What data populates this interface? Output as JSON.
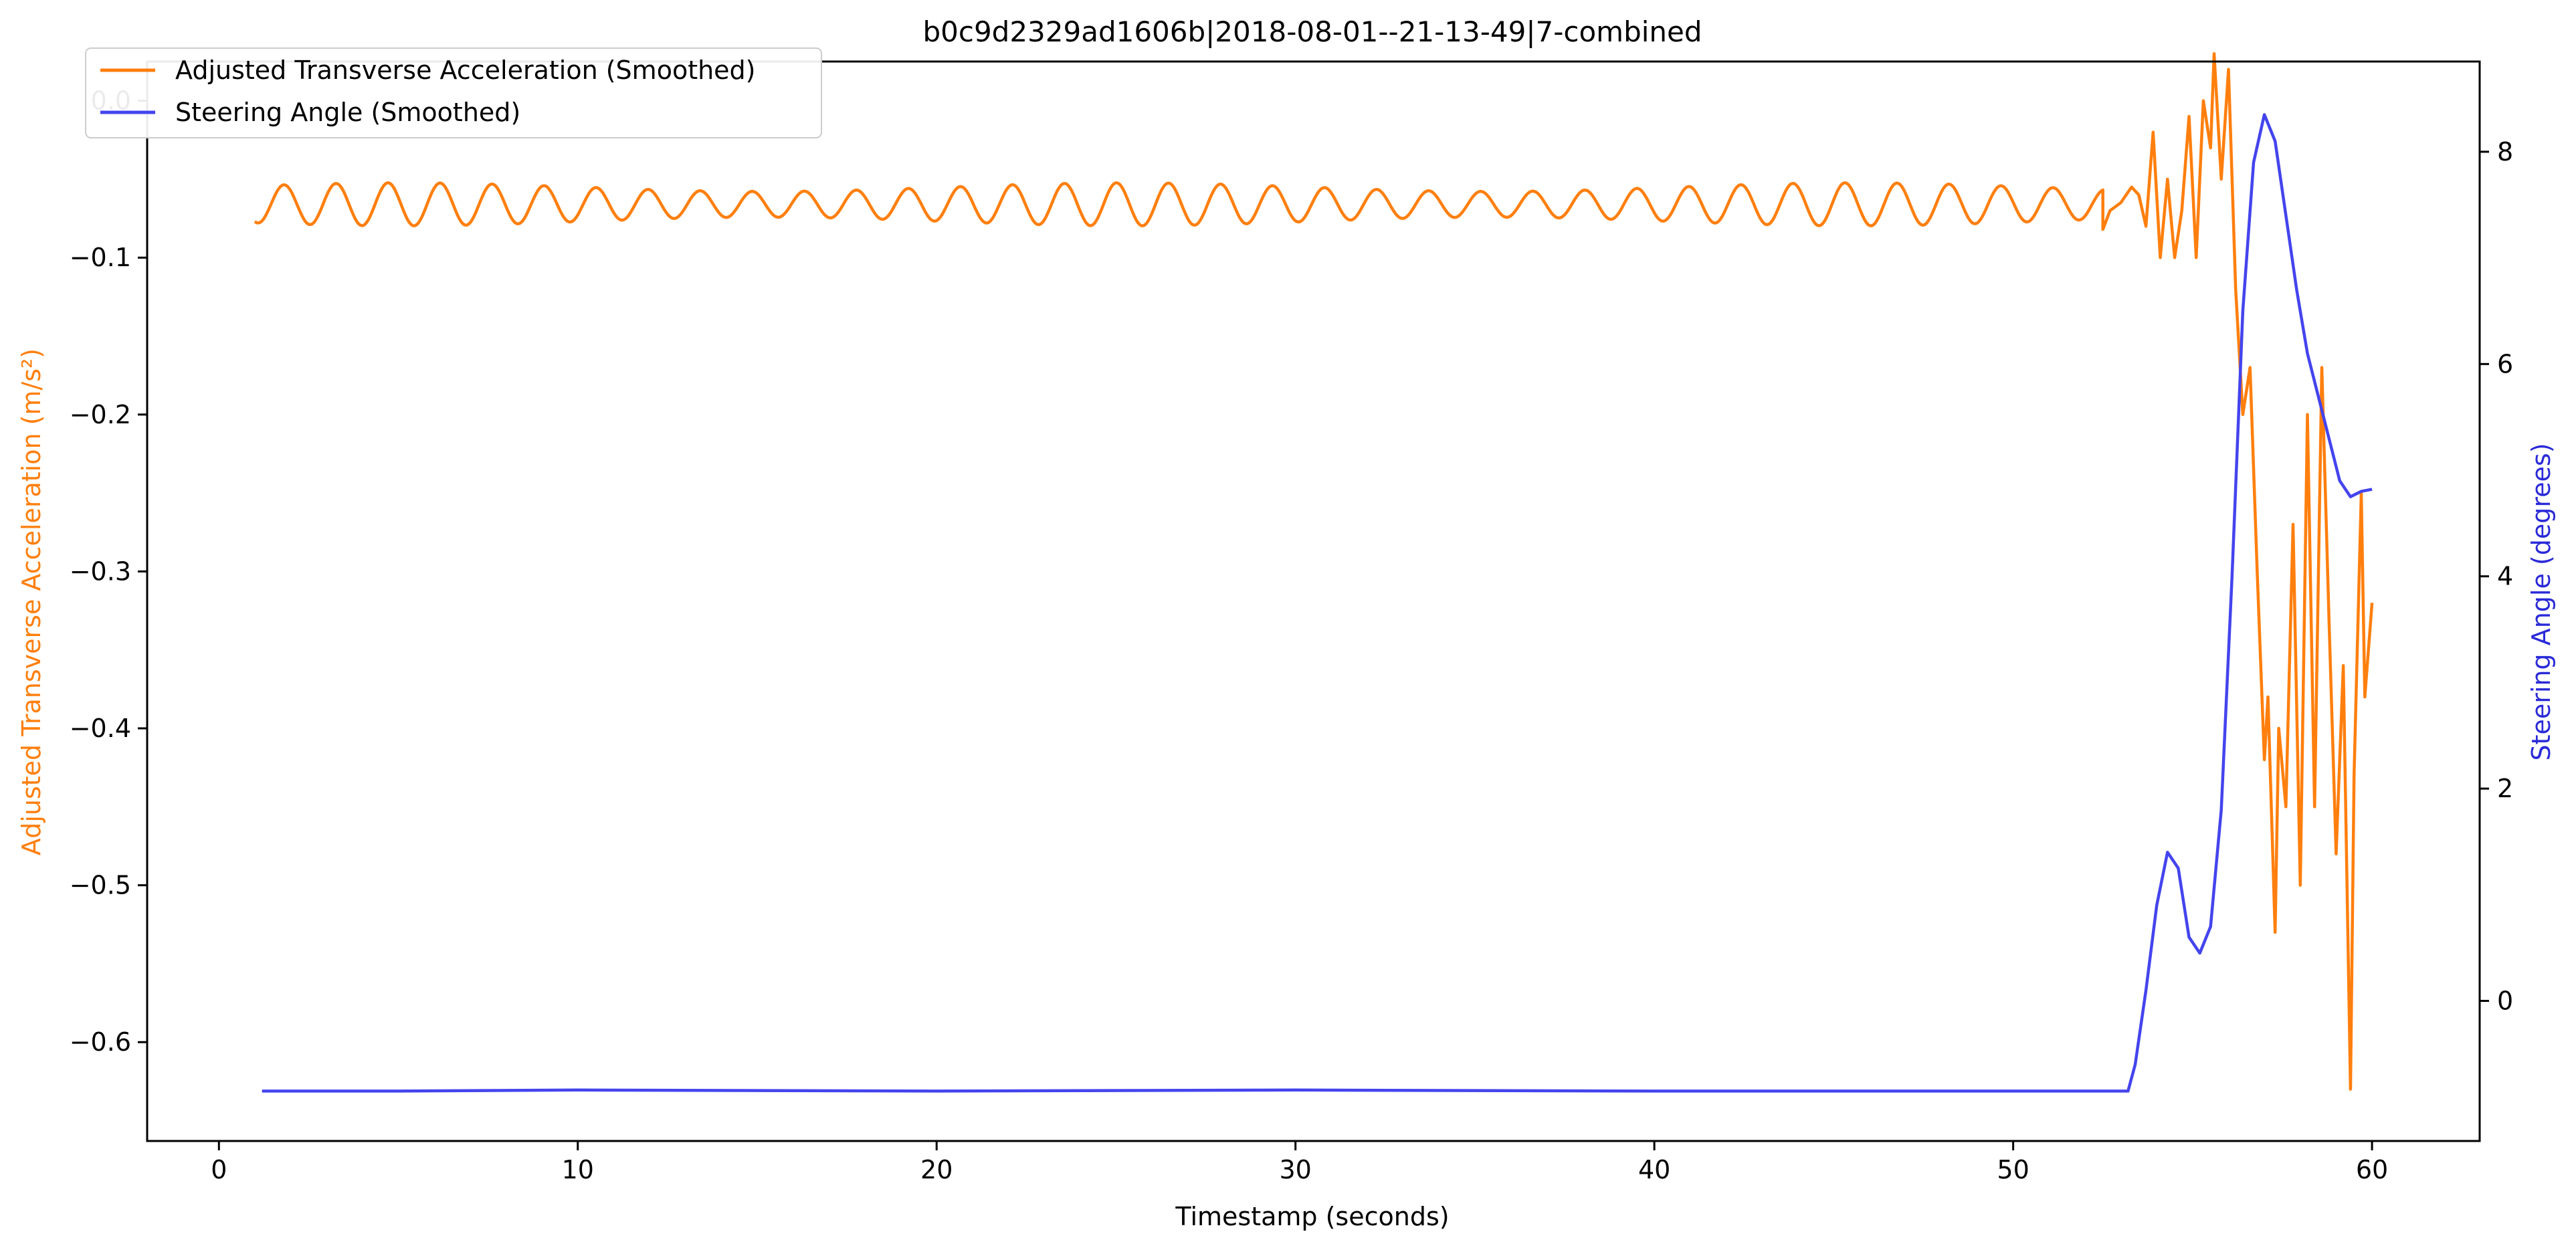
{
  "chart_data": {
    "type": "line",
    "title": "b0c9d2329ad1606b|2018-08-01--21-13-49|7-combined",
    "xlabel": "Timestamp (seconds)",
    "ylabel_left": "Adjusted Transverse Acceleration (m/s²)",
    "ylabel_right": "Steering Angle (degrees)",
    "xlim": [
      -2,
      63
    ],
    "ylim_left": [
      -0.663,
      0.025
    ],
    "ylim_right": [
      -1.32,
      8.85
    ],
    "x_ticks": [
      0,
      10,
      20,
      30,
      40,
      50,
      60
    ],
    "x_tick_labels": [
      "0",
      "10",
      "20",
      "30",
      "40",
      "50",
      "60"
    ],
    "y_left_ticks": [
      0.0,
      -0.1,
      -0.2,
      -0.3,
      -0.4,
      -0.5,
      -0.6
    ],
    "y_left_tick_labels": [
      "0.0",
      "−0.1",
      "−0.2",
      "−0.3",
      "−0.4",
      "−0.5",
      "−0.6"
    ],
    "y_right_ticks": [
      0,
      2,
      4,
      6,
      8
    ],
    "y_right_tick_labels": [
      "0",
      "2",
      "4",
      "6",
      "8"
    ],
    "legend": {
      "placement": "top-left",
      "entries": [
        {
          "label": "Adjusted Transverse Acceleration (Smoothed)",
          "color": "#ff7f0e"
        },
        {
          "label": "Steering Angle (Smoothed)",
          "color": "#4444ee"
        }
      ]
    },
    "series": [
      {
        "name": "Adjusted Transverse Acceleration (Smoothed)",
        "axis": "left",
        "color": "#ff7f0e",
        "oscillation": {
          "t_start": 1.0,
          "t_end": 52.5,
          "center": -0.066,
          "amplitude": 0.011,
          "period": 1.45
        },
        "x": [
          52.5,
          52.7,
          53.0,
          53.3,
          53.5,
          53.7,
          53.9,
          54.1,
          54.3,
          54.5,
          54.7,
          54.9,
          55.1,
          55.3,
          55.5,
          55.6,
          55.8,
          56.0,
          56.2,
          56.4,
          56.6,
          56.8,
          57.0,
          57.1,
          57.3,
          57.4,
          57.6,
          57.8,
          58.0,
          58.2,
          58.4,
          58.6,
          58.8,
          59.0,
          59.2,
          59.4,
          59.5,
          59.7,
          59.8,
          60.0
        ],
        "y": [
          -0.082,
          -0.07,
          -0.065,
          -0.055,
          -0.06,
          -0.08,
          -0.02,
          -0.1,
          -0.05,
          -0.1,
          -0.07,
          -0.01,
          -0.1,
          0.0,
          -0.03,
          0.03,
          -0.05,
          0.02,
          -0.12,
          -0.2,
          -0.17,
          -0.3,
          -0.42,
          -0.38,
          -0.53,
          -0.4,
          -0.45,
          -0.27,
          -0.5,
          -0.2,
          -0.45,
          -0.17,
          -0.33,
          -0.48,
          -0.36,
          -0.63,
          -0.43,
          -0.25,
          -0.38,
          -0.32
        ]
      },
      {
        "name": "Steering Angle (Smoothed)",
        "axis": "right",
        "color": "#4444ee",
        "x": [
          1.2,
          5.0,
          10.0,
          20.0,
          30.0,
          40.0,
          50.0,
          53.2,
          53.4,
          53.7,
          54.0,
          54.3,
          54.6,
          54.9,
          55.2,
          55.5,
          55.8,
          56.1,
          56.4,
          56.7,
          57.0,
          57.3,
          57.6,
          57.9,
          58.2,
          58.5,
          58.8,
          59.1,
          59.4,
          59.7,
          60.0
        ],
        "y": [
          -0.85,
          -0.85,
          -0.84,
          -0.85,
          -0.84,
          -0.85,
          -0.85,
          -0.85,
          -0.6,
          0.1,
          0.9,
          1.4,
          1.25,
          0.6,
          0.45,
          0.7,
          1.8,
          4.0,
          6.5,
          7.9,
          8.35,
          8.1,
          7.4,
          6.7,
          6.1,
          5.7,
          5.3,
          4.9,
          4.75,
          4.8,
          4.82
        ]
      }
    ]
  }
}
